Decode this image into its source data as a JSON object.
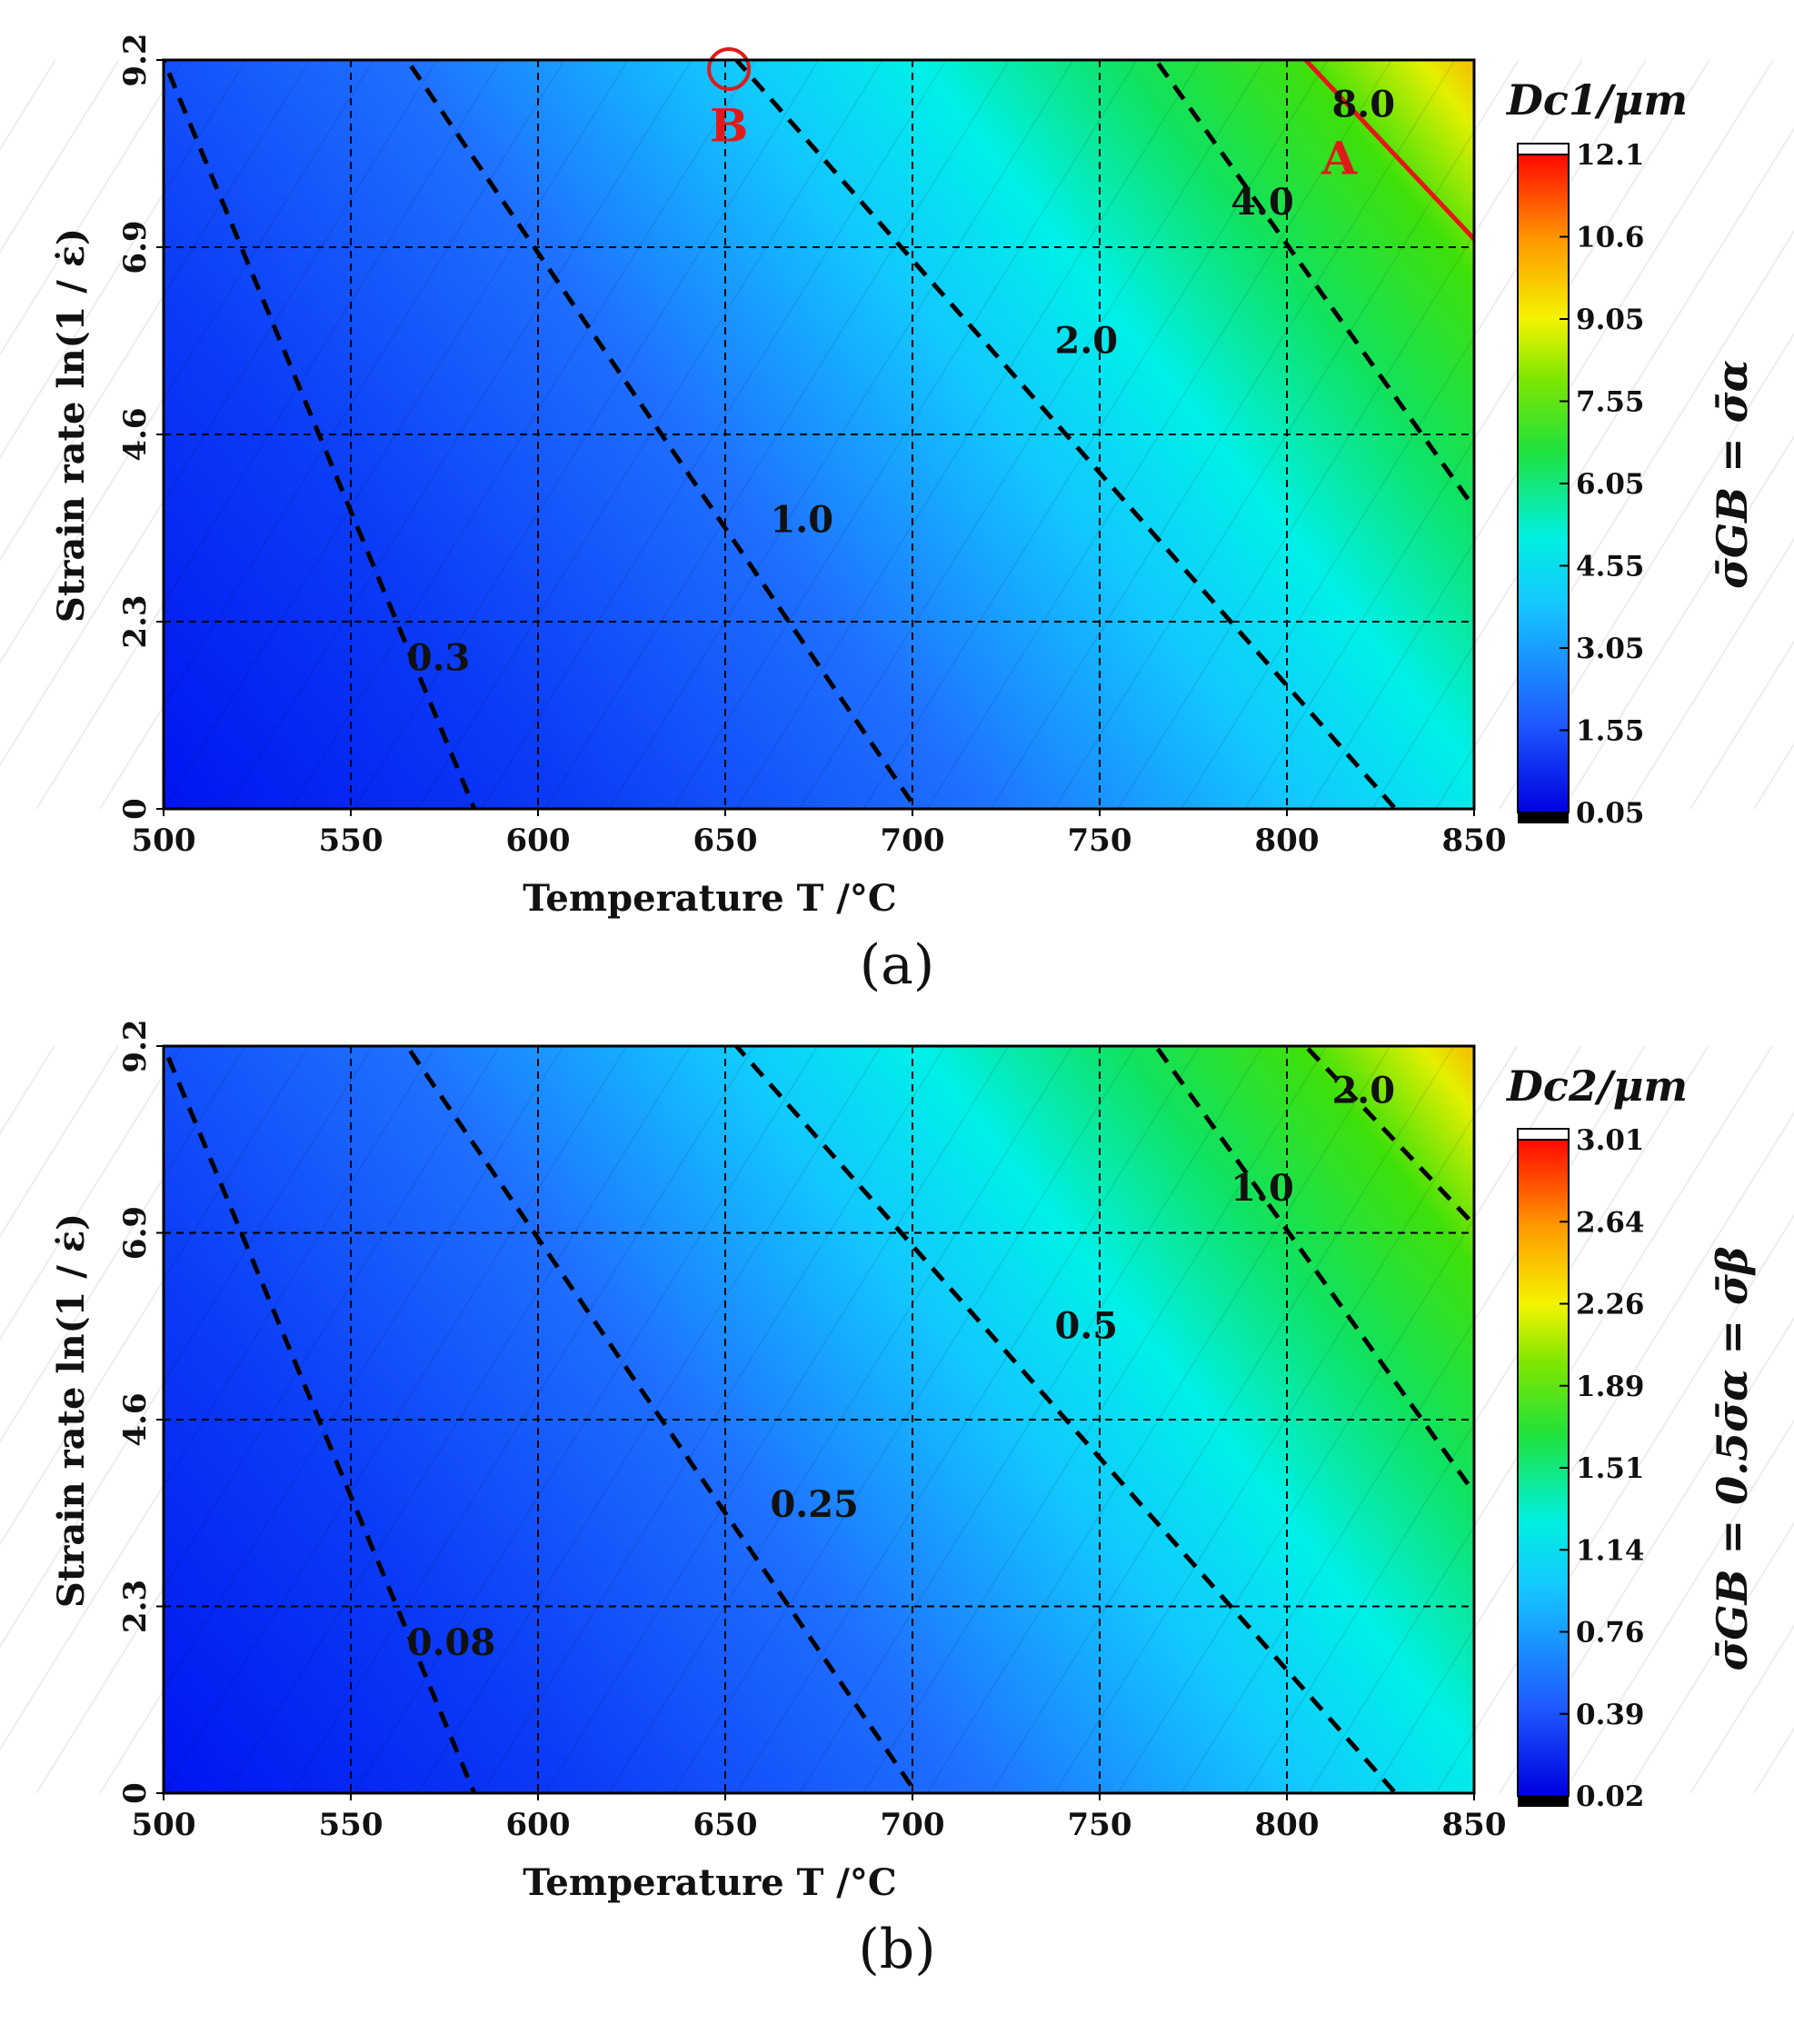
{
  "chart_data": [
    {
      "type": "heatmap",
      "panel_label": "(a)",
      "xlabel": "Temperature T /°C",
      "ylabel": "Strain rate ln(1 / ε̇)",
      "xlim": [
        500,
        850
      ],
      "ylim": [
        0,
        9.2
      ],
      "x_ticks": [
        "500",
        "550",
        "600",
        "650",
        "700",
        "750",
        "800",
        "850"
      ],
      "y_ticks": [
        "0",
        "2.3",
        "4.6",
        "6.9",
        "9.2"
      ],
      "grid": "dashed",
      "colorbar": {
        "title": "Dc1/μm",
        "ticks": [
          "0.05",
          "1.55",
          "3.05",
          "4.55",
          "6.05",
          "7.55",
          "9.05",
          "10.6",
          "12.1"
        ],
        "range": [
          0.05,
          12.1
        ],
        "side_title": "σ̄GB = σ̄α"
      },
      "contours": [
        {
          "label": "0.3",
          "x_at_y0": 583,
          "x_at_ymax": 500,
          "y_at_left": 6.9
        },
        {
          "label": "1.0",
          "x_at_y0": 701,
          "x_at_ymax": 565
        },
        {
          "label": "2.0",
          "x_at_y0": 829,
          "x_at_ymax": 653
        },
        {
          "label": "4.0",
          "x_at_ymax": 765,
          "y_at_right": 3.7
        },
        {
          "label": "8.0",
          "x_at_ymax": 805,
          "y_at_right": 7.0,
          "highlight": true
        }
      ],
      "annotations": [
        {
          "label": "A",
          "x": 814,
          "y": 7.8,
          "color": "#e01a1a"
        },
        {
          "label": "B",
          "x": 651,
          "y": 8.2,
          "color": "#e01a1a",
          "circle": {
            "x": 651,
            "y": 9.2
          }
        }
      ],
      "colormap": [
        "#0000ff",
        "#2277ff",
        "#00ffff",
        "#00ee33",
        "#ffff00",
        "#ff8800",
        "#ff0000"
      ]
    },
    {
      "type": "heatmap",
      "panel_label": "(b)",
      "xlabel": "Temperature T /°C",
      "ylabel": "Strain rate ln(1 / ε̇)",
      "xlim": [
        500,
        850
      ],
      "ylim": [
        0,
        9.2
      ],
      "x_ticks": [
        "500",
        "550",
        "600",
        "650",
        "700",
        "750",
        "800",
        "850"
      ],
      "y_ticks": [
        "0",
        "2.3",
        "4.6",
        "6.9",
        "9.2"
      ],
      "grid": "dashed",
      "colorbar": {
        "title": "Dc2/μm",
        "ticks": [
          "0.02",
          "0.39",
          "0.76",
          "1.14",
          "1.51",
          "1.89",
          "2.26",
          "2.64",
          "3.01"
        ],
        "range": [
          0.02,
          3.01
        ],
        "side_title": "σ̄GB = 0.5σ̄α = σ̄β"
      },
      "contours": [
        {
          "label": "0.08",
          "x_at_y0": 583,
          "x_at_ymax": 500,
          "y_at_left": 6.9
        },
        {
          "label": "0.25",
          "x_at_y0": 701,
          "x_at_ymax": 565
        },
        {
          "label": "0.5",
          "x_at_y0": 829,
          "x_at_ymax": 653
        },
        {
          "label": "1.0",
          "x_at_ymax": 765,
          "y_at_right": 3.7
        },
        {
          "label": "2.0",
          "x_at_ymax": 805,
          "y_at_right": 7.0
        }
      ],
      "annotations": [],
      "colormap": [
        "#0000ff",
        "#2277ff",
        "#00ffff",
        "#00ee33",
        "#ffff00",
        "#ff8800",
        "#ff0000"
      ]
    }
  ]
}
